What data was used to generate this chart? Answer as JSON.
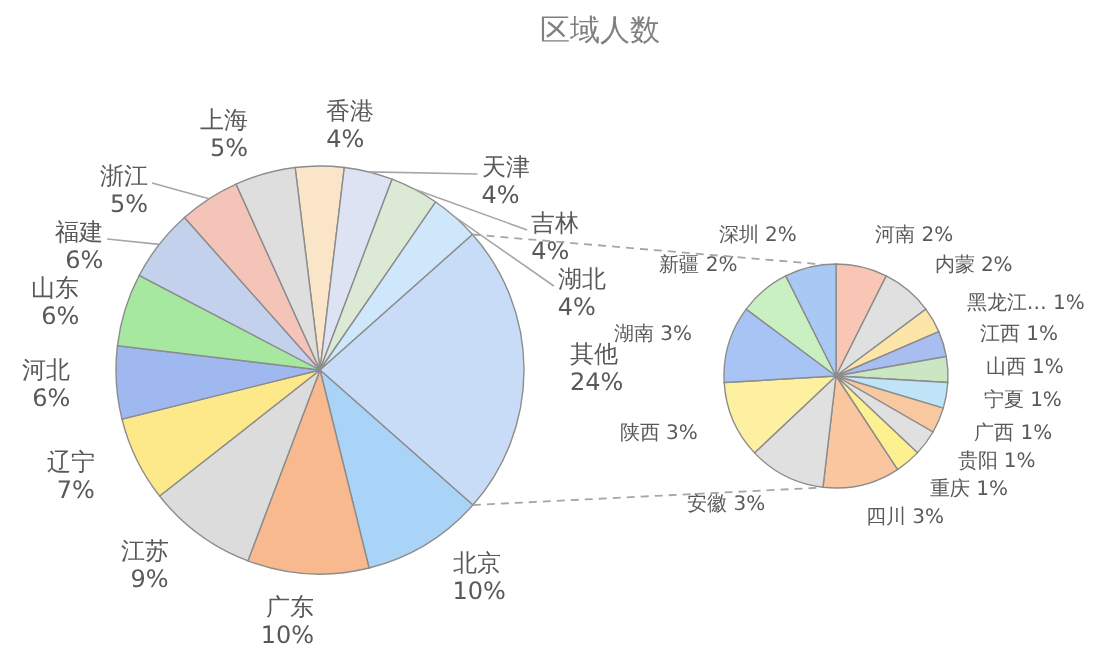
{
  "chart_data": [
    {
      "type": "pie",
      "title": "区域人数",
      "categories": [
        "香港",
        "天津",
        "吉林",
        "湖北",
        "其他",
        "北京",
        "广东",
        "江苏",
        "辽宁",
        "河北",
        "山东",
        "福建",
        "浙江",
        "上海"
      ],
      "values": [
        4,
        4,
        4,
        4,
        24,
        10,
        10,
        9,
        7,
        6,
        6,
        6,
        5,
        5
      ],
      "value_labels": [
        "4%",
        "4%",
        "4%",
        "4%",
        "24%",
        "10%",
        "10%",
        "9%",
        "7%",
        "6%",
        "6%",
        "6%",
        "5%",
        "5%"
      ],
      "colors": [
        "#fbe5c8",
        "#dde3f3",
        "#dce9d5",
        "#cfe7fb",
        "#c9dcf7",
        "#a9d3f7",
        "#f9b98f",
        "#dcdcdc",
        "#fde88a",
        "#9fb8f0",
        "#a6e89f",
        "#c4d1ec",
        "#f4c4b8",
        "#dedede"
      ]
    },
    {
      "type": "pie",
      "categories": [
        "河南",
        "内蒙",
        "黑龙江…",
        "江西",
        "山西",
        "宁夏",
        "广西",
        "贵阳",
        "重庆",
        "四川",
        "安徽",
        "陕西",
        "湖南",
        "新疆",
        "深圳"
      ],
      "values": [
        2,
        2,
        1,
        1,
        1,
        1,
        1,
        1,
        1,
        3,
        3,
        3,
        3,
        2,
        2
      ],
      "value_labels": [
        "2%",
        "2%",
        "1%",
        "1%",
        "1%",
        "1%",
        "1%",
        "1%",
        "1%",
        "3%",
        "3%",
        "3%",
        "3%",
        "2%",
        "2%"
      ],
      "colors": [
        "#f9c6b5",
        "#e0e0e0",
        "#fde4a8",
        "#a8bdf0",
        "#cbe6c3",
        "#bfe3f7",
        "#f8c8a0",
        "#e0e0e0",
        "#fdf090",
        "#f9c6a0",
        "#e0e0e0",
        "#fdf0a0",
        "#a8c4f5",
        "#c8f0c0",
        "#a9c9f5"
      ]
    }
  ]
}
